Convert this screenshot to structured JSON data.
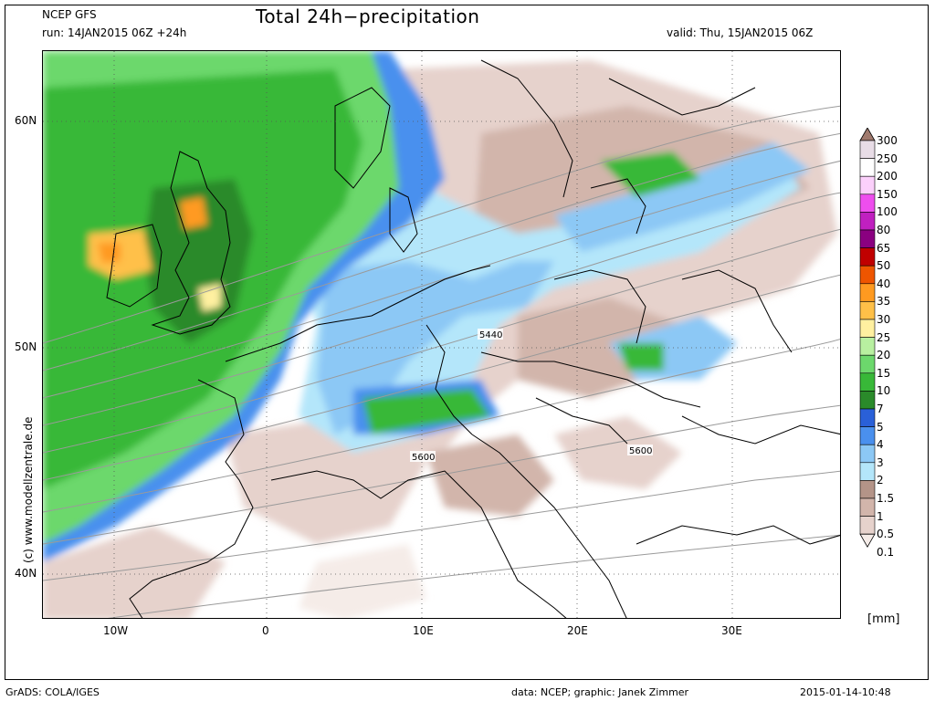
{
  "header": {
    "model": "NCEP GFS",
    "run": "run: 14JAN2015 06Z +24h",
    "title": "Total 24h−precipitation",
    "valid": "valid: Thu, 15JAN2015 06Z"
  },
  "axes": {
    "lat_labels": [
      "60N",
      "50N",
      "40N"
    ],
    "lon_labels": [
      "10W",
      "0",
      "10E",
      "20E",
      "30E"
    ]
  },
  "contours": {
    "labels": [
      "5440",
      "5600",
      "5600"
    ]
  },
  "side_credit": "(c)  www.modellzentrale.de",
  "legend": {
    "levels": [
      "300",
      "250",
      "200",
      "150",
      "100",
      "80",
      "65",
      "50",
      "40",
      "35",
      "30",
      "25",
      "20",
      "15",
      "10",
      "7",
      "5",
      "4",
      "3",
      "2",
      "1.5",
      "1",
      "0.5",
      "0.1"
    ],
    "colors": [
      "#a07a6e",
      "#e8dce6",
      "#ffffff",
      "#fbd0fb",
      "#ee4eee",
      "#c020c0",
      "#8a0080",
      "#c00000",
      "#ee5500",
      "#ff9a20",
      "#ffc048",
      "#fff0a0",
      "#b8f0a0",
      "#6cd86c",
      "#38b838",
      "#2a8a2a",
      "#2a60d8",
      "#4a90ee",
      "#8cc8f5",
      "#b4e6fa",
      "#b49488",
      "#d2b5ab",
      "#e6d2cc",
      "#f5ece8"
    ],
    "unit": "[mm]"
  },
  "footer": {
    "left": "GrADS: COLA/IGES",
    "data": "data: NCEP; graphic: Janek Zimmer",
    "timestamp": "2015-01-14-10:48"
  }
}
